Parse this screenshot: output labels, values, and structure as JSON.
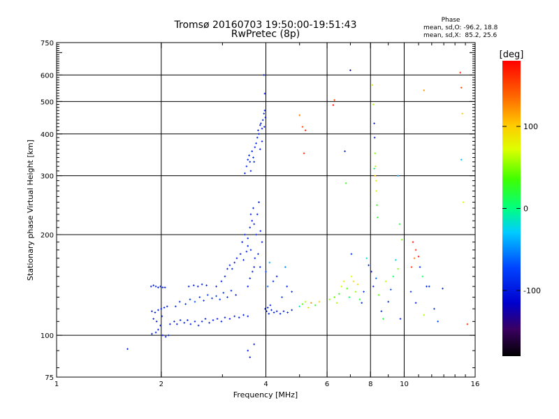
{
  "chart_data": {
    "type": "scatter",
    "title": "Tromsø 20160703 19:50:00-19:51:43",
    "subtitle": "RwPretec (8p)",
    "phase_stats": {
      "heading": "Phase",
      "line_o": "mean, sd,O: -96.2, 18.8",
      "line_x": "mean, sd,X:  85.2, 25.6"
    },
    "xlabel": "Frequency [MHz]",
    "ylabel": "Stationary phase Virtual Height [km]",
    "x_scale": "log2",
    "y_scale": "log",
    "xlim": [
      1,
      16
    ],
    "ylim": [
      75,
      750
    ],
    "x_ticks": [
      {
        "value": 1,
        "label": "1"
      },
      {
        "value": 2,
        "label": "2"
      },
      {
        "value": 4,
        "label": "4"
      },
      {
        "value": 6,
        "label": "6"
      },
      {
        "value": 8,
        "label": "8"
      },
      {
        "value": 10,
        "label": "10"
      },
      {
        "value": 16,
        "label": "16"
      }
    ],
    "y_ticks": [
      {
        "value": 75,
        "label": "75"
      },
      {
        "value": 100,
        "label": "100"
      },
      {
        "value": 200,
        "label": "200"
      },
      {
        "value": 300,
        "label": "300"
      },
      {
        "value": 400,
        "label": "400"
      },
      {
        "value": 500,
        "label": "500"
      },
      {
        "value": 600,
        "label": "600"
      },
      {
        "value": 750,
        "label": "750"
      }
    ],
    "grid_x": [
      2,
      4,
      6,
      8,
      10
    ],
    "grid_y": [
      100,
      200,
      300,
      400,
      500,
      600
    ],
    "colorbar": {
      "label": "[deg]",
      "range": [
        -180,
        180
      ],
      "ticks": [
        {
          "value": 100,
          "label": "100"
        },
        {
          "value": 0,
          "label": "0"
        },
        {
          "value": -100,
          "label": "-100"
        }
      ]
    },
    "series": [
      {
        "points": [
          [
            1.87,
            140,
            -95
          ],
          [
            1.9,
            141,
            -98
          ],
          [
            1.93,
            140,
            -96
          ],
          [
            1.96,
            139,
            -100
          ],
          [
            1.99,
            140,
            -95
          ],
          [
            2.02,
            139,
            -97
          ],
          [
            2.05,
            139,
            -99
          ],
          [
            1.88,
            118,
            -95
          ],
          [
            1.92,
            117,
            -100
          ],
          [
            1.96,
            119,
            -97
          ],
          [
            2.0,
            120,
            -98
          ],
          [
            2.04,
            121,
            -95
          ],
          [
            2.08,
            122,
            -96
          ],
          [
            1.9,
            112,
            -94
          ],
          [
            1.94,
            110,
            -99
          ],
          [
            2.01,
            114,
            -96
          ],
          [
            1.88,
            101,
            -95
          ],
          [
            1.93,
            102,
            -98
          ],
          [
            1.96,
            104,
            -97
          ],
          [
            2.02,
            100,
            -96
          ],
          [
            2.06,
            99,
            -99
          ],
          [
            2.1,
            100,
            -95
          ],
          [
            1.99,
            107,
            -100
          ],
          [
            2.12,
            108,
            -96
          ],
          [
            2.18,
            110,
            -95
          ],
          [
            2.22,
            108,
            -98
          ],
          [
            2.27,
            111,
            -97
          ],
          [
            2.33,
            109,
            -95
          ],
          [
            2.38,
            111,
            -99
          ],
          [
            2.43,
            108,
            -96
          ],
          [
            2.5,
            110,
            -94
          ],
          [
            2.56,
            107,
            -98
          ],
          [
            2.62,
            110,
            -95
          ],
          [
            2.68,
            112,
            -97
          ],
          [
            2.75,
            109,
            -96
          ],
          [
            2.82,
            111,
            -99
          ],
          [
            2.9,
            112,
            -95
          ],
          [
            2.98,
            110,
            -97
          ],
          [
            3.05,
            113,
            -96
          ],
          [
            3.15,
            112,
            -98
          ],
          [
            3.25,
            114,
            -95
          ],
          [
            3.35,
            113,
            -97
          ],
          [
            3.45,
            115,
            -96
          ],
          [
            3.55,
            114,
            -99
          ],
          [
            2.2,
            122,
            -90
          ],
          [
            2.26,
            126,
            -92
          ],
          [
            2.35,
            124,
            -85
          ],
          [
            2.42,
            128,
            -88
          ],
          [
            2.5,
            126,
            -70
          ],
          [
            2.58,
            130,
            -84
          ],
          [
            2.65,
            127,
            -80
          ],
          [
            2.72,
            132,
            -75
          ],
          [
            2.8,
            129,
            -86
          ],
          [
            2.88,
            131,
            -78
          ],
          [
            2.95,
            128,
            -82
          ],
          [
            3.02,
            134,
            -88
          ],
          [
            3.1,
            130,
            -90
          ],
          [
            3.18,
            136,
            -92
          ],
          [
            3.28,
            132,
            -95
          ],
          [
            2.4,
            140,
            -97
          ],
          [
            2.48,
            141,
            -95
          ],
          [
            2.55,
            140,
            -99
          ],
          [
            2.62,
            142,
            -96
          ],
          [
            2.7,
            141,
            -98
          ],
          [
            2.88,
            140,
            -95
          ],
          [
            2.98,
            145,
            -97
          ],
          [
            3.05,
            150,
            -96
          ],
          [
            3.1,
            158,
            -99
          ],
          [
            3.15,
            162,
            -95
          ],
          [
            3.2,
            158,
            -97
          ],
          [
            3.25,
            165,
            -96
          ],
          [
            3.3,
            170,
            -98
          ],
          [
            3.38,
            175,
            -95
          ],
          [
            3.45,
            168,
            -97
          ],
          [
            3.52,
            178,
            -96
          ],
          [
            3.55,
            185,
            -99
          ],
          [
            3.42,
            190,
            -98
          ],
          [
            3.48,
            200,
            -100
          ],
          [
            3.55,
            195,
            -95
          ],
          [
            3.6,
            210,
            -97
          ],
          [
            3.62,
            230,
            -96
          ],
          [
            3.65,
            220,
            -105
          ],
          [
            3.68,
            240,
            -98
          ],
          [
            3.7,
            215,
            -96
          ],
          [
            3.75,
            200,
            -95
          ],
          [
            3.78,
            230,
            -97
          ],
          [
            3.82,
            250,
            -100
          ],
          [
            3.86,
            205,
            -96
          ],
          [
            3.9,
            190,
            -99
          ],
          [
            3.62,
            180,
            -95
          ],
          [
            3.7,
            160,
            -97
          ],
          [
            3.6,
            148,
            -96
          ],
          [
            3.55,
            140,
            -98
          ],
          [
            3.66,
            155,
            -95
          ],
          [
            3.72,
            170,
            -92
          ],
          [
            3.8,
            175,
            -90
          ],
          [
            3.85,
            160,
            -88
          ],
          [
            3.48,
            305,
            -98
          ],
          [
            3.52,
            320,
            -96
          ],
          [
            3.55,
            335,
            -95
          ],
          [
            3.58,
            345,
            -99
          ],
          [
            3.6,
            330,
            -97
          ],
          [
            3.62,
            310,
            -96
          ],
          [
            3.65,
            355,
            -100
          ],
          [
            3.68,
            340,
            -95
          ],
          [
            3.7,
            330,
            -98
          ],
          [
            3.72,
            365,
            -97
          ],
          [
            3.75,
            375,
            -95
          ],
          [
            3.78,
            390,
            -96
          ],
          [
            3.8,
            410,
            -99
          ],
          [
            3.82,
            400,
            -95
          ],
          [
            3.85,
            425,
            -97
          ],
          [
            3.87,
            430,
            -96
          ],
          [
            3.9,
            415,
            -98
          ],
          [
            3.92,
            440,
            -95
          ],
          [
            3.95,
            460,
            -97
          ],
          [
            3.97,
            470,
            -96
          ],
          [
            3.99,
            448,
            -99
          ],
          [
            3.96,
            420,
            -95
          ],
          [
            3.9,
            380,
            -97
          ],
          [
            3.85,
            360,
            -96
          ],
          [
            3.95,
            600,
            -100
          ],
          [
            3.97,
            528,
            -98
          ],
          [
            3.98,
            120,
            -95
          ],
          [
            4.02,
            118,
            -97
          ],
          [
            4.08,
            116,
            -96
          ],
          [
            4.15,
            119,
            -98
          ],
          [
            4.22,
            117,
            -95
          ],
          [
            4.3,
            118,
            -97
          ],
          [
            4.4,
            116,
            -96
          ],
          [
            4.5,
            118,
            -99
          ],
          [
            4.62,
            117,
            -95
          ],
          [
            4.75,
            119,
            -97
          ],
          [
            4.05,
            121,
            -96
          ],
          [
            4.12,
            123,
            -98
          ],
          [
            3.55,
            90,
            -95
          ],
          [
            3.7,
            94,
            -97
          ],
          [
            3.6,
            86,
            -96
          ],
          [
            1.6,
            91,
            -98
          ],
          [
            4.0,
            155,
            -80
          ],
          [
            4.05,
            140,
            -60
          ],
          [
            4.1,
            165,
            -40
          ],
          [
            4.2,
            145,
            -90
          ],
          [
            4.3,
            150,
            -95
          ],
          [
            4.45,
            130,
            -75
          ],
          [
            4.55,
            160,
            -50
          ],
          [
            4.6,
            140,
            -92
          ],
          [
            4.75,
            135,
            -88
          ],
          [
            5.0,
            122,
            -20
          ],
          [
            5.1,
            124,
            40
          ],
          [
            5.2,
            126,
            60
          ],
          [
            5.3,
            121,
            90
          ],
          [
            5.4,
            125,
            120
          ],
          [
            5.55,
            123,
            30
          ],
          [
            5.7,
            126,
            100
          ],
          [
            5.1,
            420,
            150
          ],
          [
            5.15,
            350,
            160
          ],
          [
            5.2,
            410,
            170
          ],
          [
            5.0,
            455,
            130
          ],
          [
            6.25,
            488,
            175
          ],
          [
            6.3,
            505,
            150
          ],
          [
            7.0,
            620,
            -120
          ],
          [
            6.75,
            355,
            -95
          ],
          [
            6.8,
            285,
            30
          ],
          [
            7.05,
            175,
            -85
          ],
          [
            6.1,
            128,
            55
          ],
          [
            6.3,
            130,
            45
          ],
          [
            6.4,
            125,
            60
          ],
          [
            6.5,
            133,
            30
          ],
          [
            6.6,
            140,
            70
          ],
          [
            6.7,
            145,
            80
          ],
          [
            6.85,
            138,
            40
          ],
          [
            6.95,
            130,
            10
          ],
          [
            7.05,
            150,
            75
          ],
          [
            7.15,
            145,
            90
          ],
          [
            7.25,
            135,
            55
          ],
          [
            7.35,
            142,
            95
          ],
          [
            7.45,
            128,
            20
          ],
          [
            7.55,
            125,
            -90
          ],
          [
            7.65,
            135,
            -85
          ],
          [
            7.8,
            170,
            -20
          ],
          [
            7.9,
            162,
            -90
          ],
          [
            8.05,
            155,
            -97
          ],
          [
            8.15,
            140,
            -95
          ],
          [
            8.3,
            148,
            -60
          ],
          [
            8.45,
            132,
            40
          ],
          [
            8.6,
            118,
            -90
          ],
          [
            8.7,
            112,
            20
          ],
          [
            8.85,
            145,
            65
          ],
          [
            9.0,
            126,
            -95
          ],
          [
            9.15,
            137,
            -70
          ],
          [
            9.3,
            150,
            10
          ],
          [
            9.45,
            168,
            -20
          ],
          [
            9.6,
            158,
            50
          ],
          [
            9.75,
            112,
            -95
          ],
          [
            8.1,
            560,
            80
          ],
          [
            8.15,
            490,
            60
          ],
          [
            8.2,
            430,
            -95
          ],
          [
            8.22,
            390,
            -100
          ],
          [
            8.25,
            350,
            50
          ],
          [
            8.27,
            320,
            60
          ],
          [
            8.3,
            290,
            80
          ],
          [
            8.32,
            270,
            70
          ],
          [
            8.35,
            245,
            30
          ],
          [
            8.38,
            225,
            20
          ],
          [
            8.2,
            315,
            10
          ],
          [
            8.25,
            300,
            100
          ],
          [
            9.6,
            300,
            -40
          ],
          [
            9.7,
            215,
            20
          ],
          [
            9.85,
            193,
            50
          ],
          [
            10.6,
            190,
            170
          ],
          [
            10.8,
            180,
            160
          ],
          [
            11.0,
            172,
            175
          ],
          [
            10.7,
            170,
            130
          ],
          [
            10.5,
            160,
            155
          ],
          [
            11.1,
            160,
            -90
          ],
          [
            11.3,
            150,
            10
          ],
          [
            11.6,
            140,
            -95
          ],
          [
            11.8,
            140,
            -90
          ],
          [
            10.45,
            135,
            -80
          ],
          [
            10.8,
            125,
            -95
          ],
          [
            12.2,
            120,
            -85
          ],
          [
            12.5,
            110,
            -70
          ],
          [
            12.9,
            138,
            -90
          ],
          [
            11.4,
            115,
            60
          ],
          [
            11.4,
            540,
            120
          ],
          [
            14.5,
            610,
            165
          ],
          [
            14.6,
            550,
            150
          ],
          [
            14.7,
            460,
            100
          ],
          [
            14.6,
            335,
            -35
          ],
          [
            14.8,
            250,
            70
          ],
          [
            15.2,
            108,
            160
          ]
        ]
      }
    ]
  }
}
